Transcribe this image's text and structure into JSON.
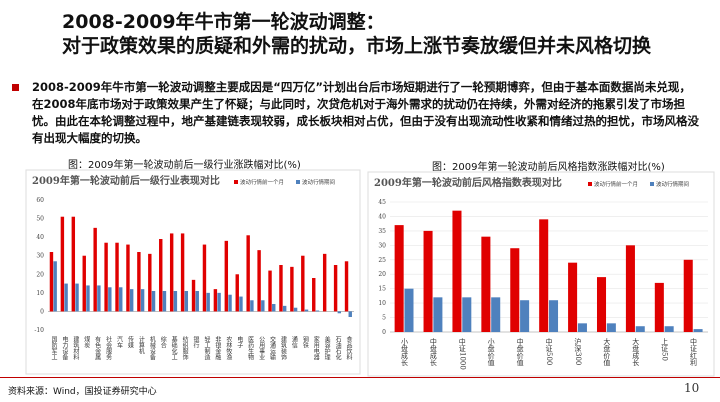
{
  "header": {
    "lines": [
      "2008-2009年牛市第一轮波动调整：",
      "对于政策效果的质疑和外需的扰动，市场上涨节奏放缓但并未风格切换"
    ]
  },
  "bullet": "2008-2009年牛市第一轮波动调整主要成因是“四万亿”计划出台后市场短期进行了一轮预期博弈，但由于基本面数据尚未兑现，在2008年底市场对于政策效果产生了怀疑；与此同时，次贷危机对于海外需求的扰动仍在持续，外需对经济的拖累引发了市场担忧。由此在本轮调整过程中，地产基建链表现较弱，成长板块相对占优，但由于没有出现流动性收紧和情绪过热的担忧，市场风格没有出现大幅度的切换。",
  "captions": [
    "图：2009年第一轮波动前后一级行业涨跌幅对比(%)",
    "图：2009年第一轮波动前后风格指数涨跌幅对比(%)"
  ],
  "source": "资料来源：Wind，国投证券研究中心",
  "page_number": "10",
  "chart_data": [
    {
      "type": "bar",
      "title": "2009年第一轮波动前后一级行业表现对比",
      "categories": [
        "国防军工",
        "电力设备",
        "建筑材料",
        "煤炭",
        "有色金属",
        "社会服务",
        "汽车",
        "传媒",
        "计算机",
        "机械设备",
        "综合",
        "基础化工",
        "纺织服饰",
        "银行",
        "轻工制造",
        "非银金融",
        "农林牧渔",
        "电子",
        "医药生物",
        "公用事业",
        "交通运输",
        "建筑装饰",
        "通信",
        "钢铁",
        "家用电器",
        "美容护理",
        "石油石化",
        "食品饮料"
      ],
      "series": [
        {
          "name": "波动行情前一个月",
          "color": "#e00000",
          "values": [
            32,
            51,
            51,
            30,
            45,
            37,
            37,
            36,
            32,
            31,
            39,
            42,
            42,
            17,
            36,
            12,
            38,
            20,
            41,
            33,
            22,
            25,
            24,
            30,
            18,
            31,
            25,
            27
          ]
        },
        {
          "name": "波动行情期间",
          "color": "#4f81bd",
          "values": [
            27,
            15,
            15,
            14,
            14,
            13,
            13,
            12,
            12,
            11,
            11,
            11,
            11,
            11,
            10,
            10,
            9,
            8,
            6,
            6,
            4,
            3,
            2,
            1,
            0.5,
            0,
            -1,
            -3
          ]
        }
      ],
      "ylim": [
        -10,
        60
      ],
      "yticks": [
        -10,
        0,
        10,
        20,
        30,
        40,
        50,
        60
      ],
      "grid": false,
      "legend": "upper right"
    },
    {
      "type": "bar",
      "title": "2009年第一轮波动前后风格指数表现对比",
      "categories": [
        "小盘成长",
        "中盘成长",
        "中证1000",
        "小盘价值",
        "中盘价值",
        "中证500",
        "沪深300",
        "大盘价值",
        "大盘成长",
        "上证50",
        "中证红利"
      ],
      "series": [
        {
          "name": "波动行情前一个月",
          "color": "#e00000",
          "values": [
            37,
            35,
            42,
            33,
            29,
            39,
            24,
            19,
            30,
            17,
            25
          ]
        },
        {
          "name": "波动行情期间",
          "color": "#4f81bd",
          "values": [
            15,
            12,
            12,
            12,
            11,
            11,
            3,
            3,
            2,
            2,
            1
          ]
        }
      ],
      "ylim": [
        0,
        45
      ],
      "yticks": [
        0,
        5,
        10,
        15,
        20,
        25,
        30,
        35,
        40,
        45
      ],
      "grid": true,
      "legend": "upper right"
    }
  ]
}
